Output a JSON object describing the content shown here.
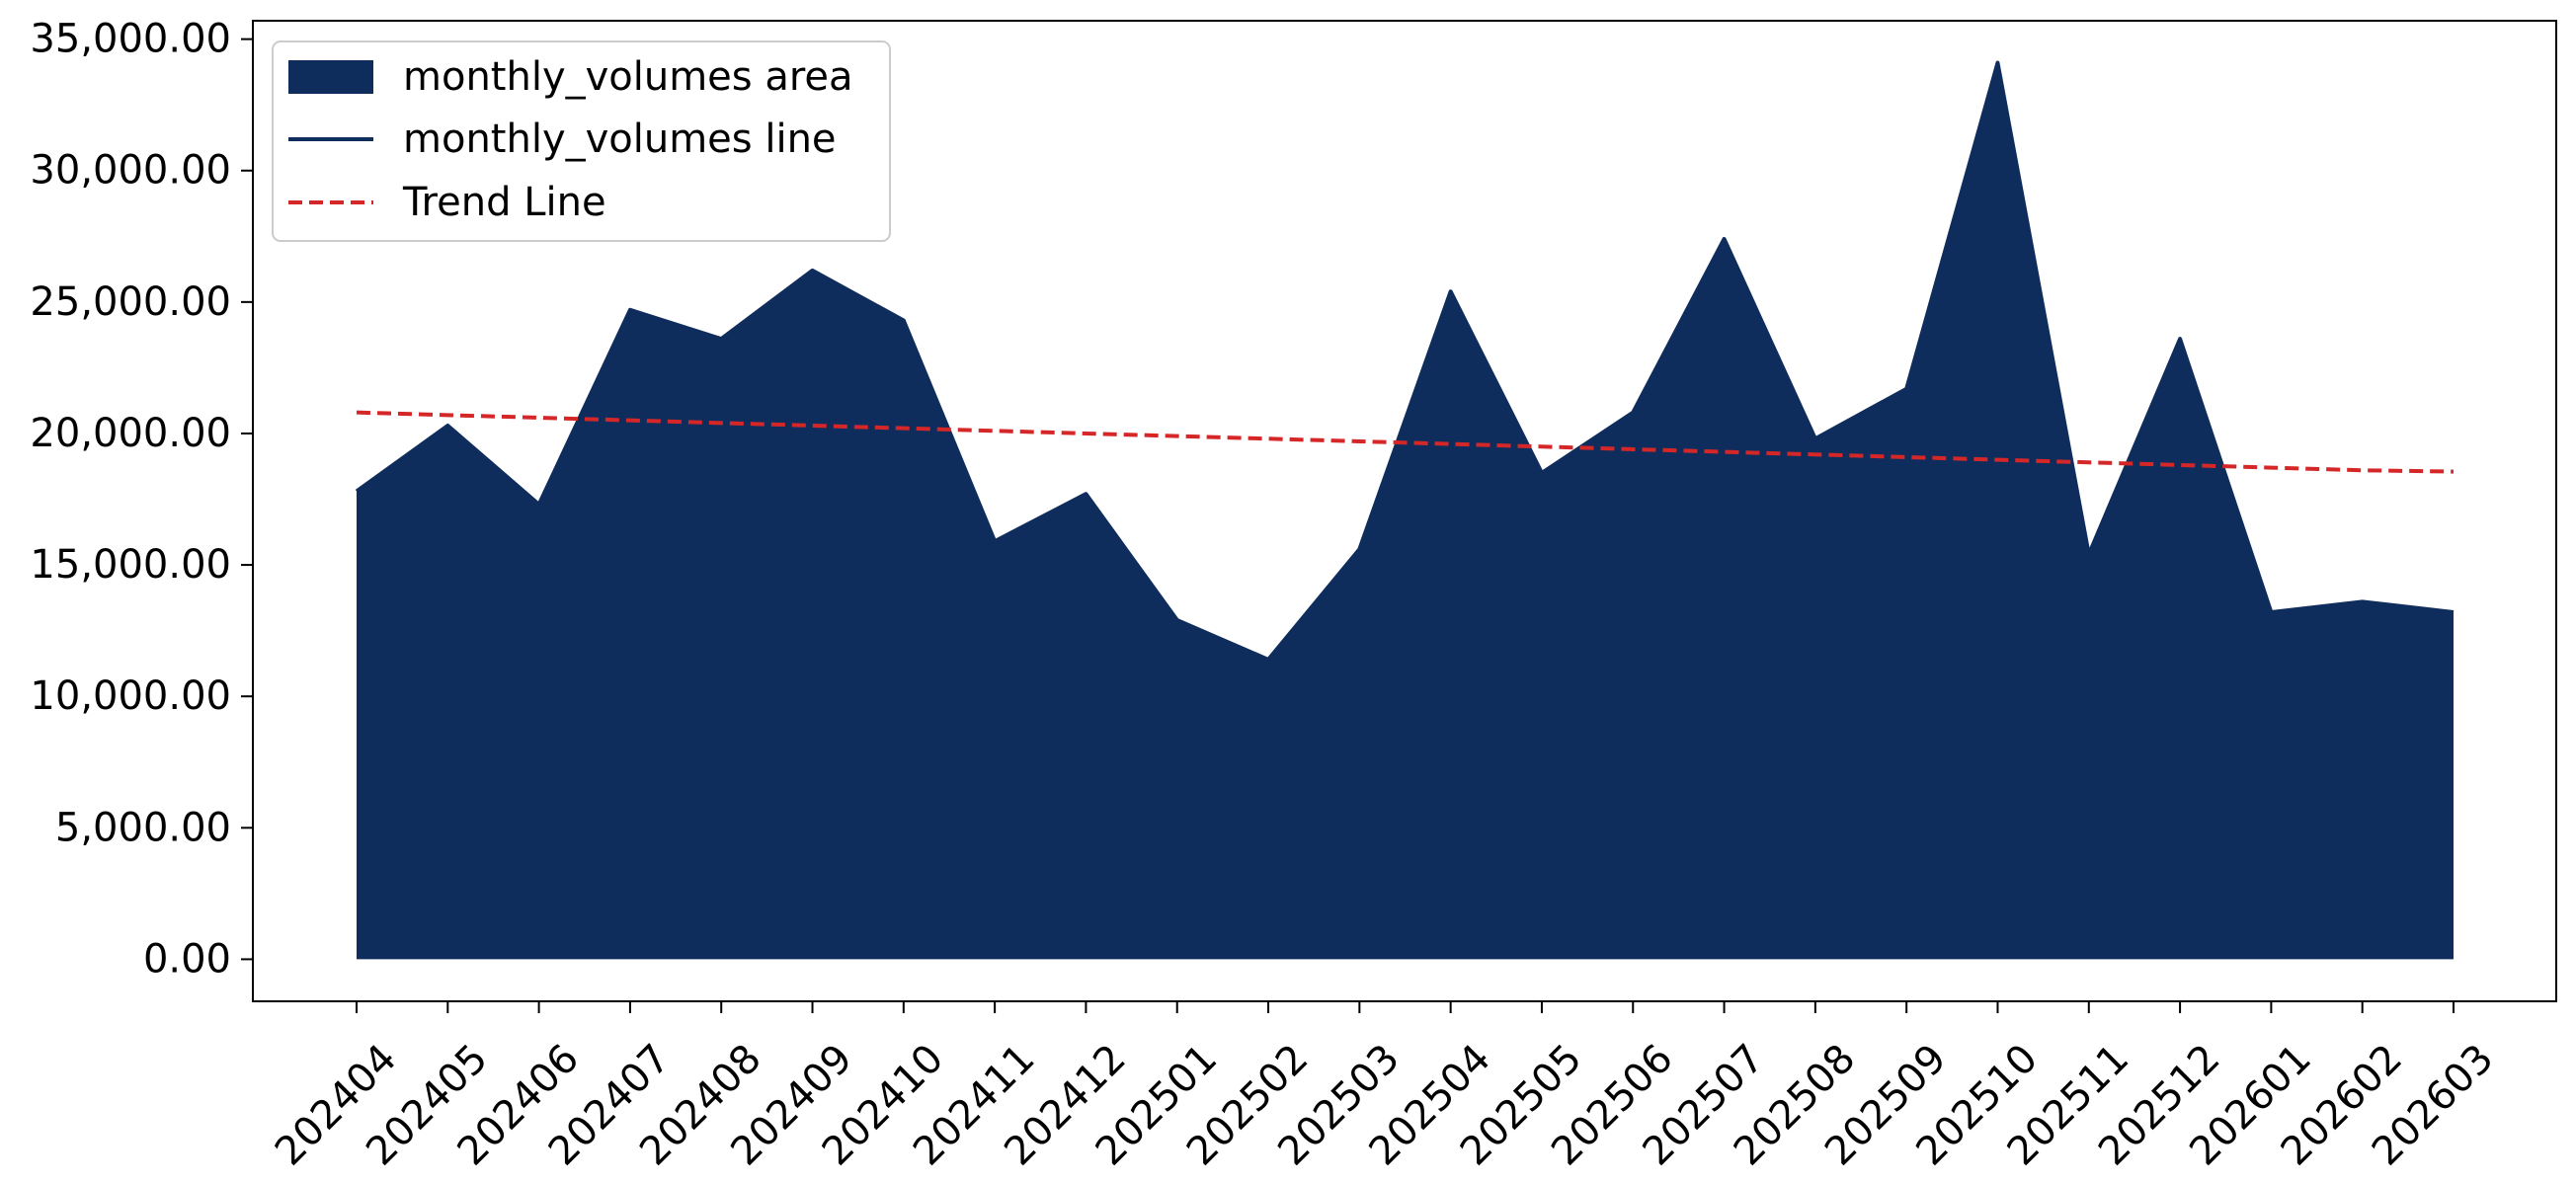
{
  "chart_data": {
    "type": "area",
    "title": "",
    "xlabel": "",
    "ylabel": "",
    "categories": [
      "202404",
      "202405",
      "202406",
      "202407",
      "202408",
      "202409",
      "202410",
      "202411",
      "202412",
      "202501",
      "202502",
      "202503",
      "202504",
      "202505",
      "202506",
      "202507",
      "202508",
      "202509",
      "202510",
      "202511",
      "202512",
      "202601",
      "202602",
      "202603"
    ],
    "series": [
      {
        "name": "monthly_volumes area",
        "kind": "area",
        "color": "#0f2d5c",
        "values": [
          17800,
          20300,
          17300,
          24700,
          23600,
          26200,
          24300,
          15900,
          17700,
          12900,
          11400,
          15600,
          25400,
          18500,
          20800,
          27400,
          19800,
          21700,
          34100,
          15400,
          23600,
          13200,
          13600,
          13200
        ]
      },
      {
        "name": "monthly_volumes line",
        "kind": "line",
        "color": "#0f2d5c",
        "values": [
          17800,
          20300,
          17300,
          24700,
          23600,
          26200,
          24300,
          15900,
          17700,
          12900,
          11400,
          15600,
          25400,
          18500,
          20800,
          27400,
          19800,
          21700,
          34100,
          15400,
          23600,
          13200,
          13600,
          13200
        ]
      },
      {
        "name": "Trend Line",
        "kind": "dashed-line",
        "color": "#d62728",
        "values": [
          20800,
          20700,
          20600,
          20500,
          20400,
          20300,
          20200,
          20100,
          20000,
          19900,
          19800,
          19700,
          19600,
          19500,
          19400,
          19300,
          19200,
          19100,
          19000,
          18900,
          18800,
          18700,
          18600,
          18550
        ]
      }
    ],
    "ylim": [
      -1600,
      35700
    ],
    "yticks": [
      0,
      5000,
      10000,
      15000,
      20000,
      25000,
      30000,
      35000
    ],
    "ytick_labels": [
      "0.00",
      "5,000.00",
      "10,000.00",
      "15,000.00",
      "20,000.00",
      "25,000.00",
      "30,000.00",
      "35,000.00"
    ],
    "grid": false,
    "legend_position": "top-left",
    "legend": [
      "monthly_volumes area",
      "monthly_volumes line",
      "Trend Line"
    ]
  }
}
